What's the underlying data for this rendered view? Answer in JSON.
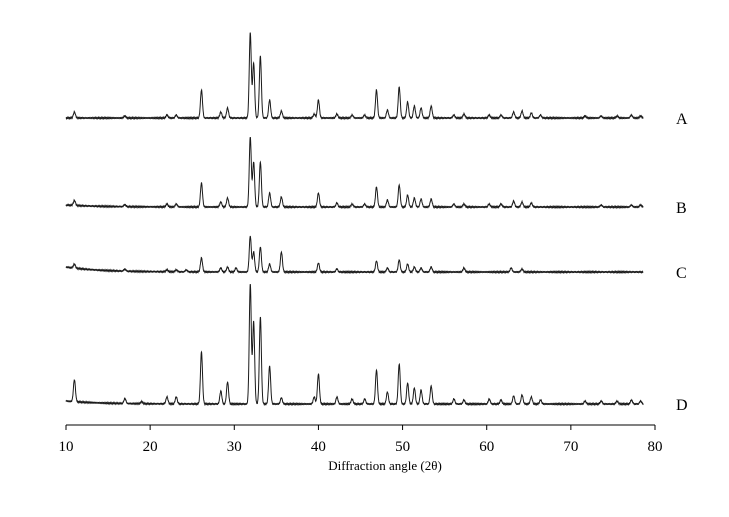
{
  "chart_data": {
    "type": "line",
    "title": "",
    "xlabel": "Diffraction angle (2θ)",
    "ylabel": "",
    "xlim": [
      10,
      80
    ],
    "xticks": [
      10,
      20,
      30,
      40,
      50,
      60,
      70,
      80
    ],
    "y_axis_shown": false,
    "grid": false,
    "legend": "labels at right end of each trace",
    "offset_stacked": true,
    "line_color": "#1a1a1a",
    "peak_width_deg": 0.12,
    "series": [
      {
        "name": "A",
        "baseline": 118,
        "baseline_tail": 0,
        "peaks": [
          [
            11.0,
            0.06
          ],
          [
            17.0,
            0.02
          ],
          [
            22.0,
            0.03
          ],
          [
            23.1,
            0.03
          ],
          [
            26.1,
            0.28
          ],
          [
            28.4,
            0.06
          ],
          [
            29.2,
            0.1
          ],
          [
            31.9,
            0.85
          ],
          [
            32.3,
            0.55
          ],
          [
            33.1,
            0.62
          ],
          [
            34.2,
            0.18
          ],
          [
            35.6,
            0.07
          ],
          [
            39.5,
            0.04
          ],
          [
            40.0,
            0.18
          ],
          [
            42.2,
            0.04
          ],
          [
            44.0,
            0.03
          ],
          [
            45.5,
            0.03
          ],
          [
            46.9,
            0.28
          ],
          [
            48.2,
            0.08
          ],
          [
            49.6,
            0.31
          ],
          [
            50.6,
            0.16
          ],
          [
            51.4,
            0.12
          ],
          [
            52.2,
            0.1
          ],
          [
            53.4,
            0.12
          ],
          [
            56.1,
            0.03
          ],
          [
            57.3,
            0.04
          ],
          [
            60.3,
            0.03
          ],
          [
            61.7,
            0.03
          ],
          [
            63.2,
            0.06
          ],
          [
            64.2,
            0.07
          ],
          [
            65.3,
            0.05
          ],
          [
            66.4,
            0.03
          ],
          [
            71.7,
            0.02
          ],
          [
            73.6,
            0.02
          ],
          [
            75.5,
            0.02
          ],
          [
            77.2,
            0.03
          ],
          [
            78.3,
            0.02
          ]
        ]
      },
      {
        "name": "B",
        "baseline": 207,
        "baseline_tail": 0.02,
        "peaks": [
          [
            11.0,
            0.05
          ],
          [
            17.0,
            0.02
          ],
          [
            22.0,
            0.03
          ],
          [
            23.1,
            0.03
          ],
          [
            26.1,
            0.24
          ],
          [
            28.4,
            0.05
          ],
          [
            29.2,
            0.09
          ],
          [
            31.9,
            0.7
          ],
          [
            32.3,
            0.45
          ],
          [
            33.1,
            0.45
          ],
          [
            34.2,
            0.14
          ],
          [
            35.6,
            0.1
          ],
          [
            40.0,
            0.14
          ],
          [
            42.2,
            0.04
          ],
          [
            44.0,
            0.03
          ],
          [
            45.5,
            0.03
          ],
          [
            46.9,
            0.2
          ],
          [
            48.2,
            0.07
          ],
          [
            49.6,
            0.22
          ],
          [
            50.6,
            0.12
          ],
          [
            51.4,
            0.09
          ],
          [
            52.2,
            0.08
          ],
          [
            53.4,
            0.08
          ],
          [
            56.1,
            0.03
          ],
          [
            57.3,
            0.03
          ],
          [
            60.3,
            0.03
          ],
          [
            61.7,
            0.03
          ],
          [
            63.2,
            0.06
          ],
          [
            64.2,
            0.05
          ],
          [
            65.3,
            0.04
          ],
          [
            73.6,
            0.02
          ],
          [
            77.2,
            0.02
          ],
          [
            78.3,
            0.02
          ]
        ]
      },
      {
        "name": "C",
        "baseline": 272,
        "baseline_tail": 0.05,
        "peaks": [
          [
            11.0,
            0.04
          ],
          [
            17.0,
            0.02
          ],
          [
            22.0,
            0.02
          ],
          [
            23.1,
            0.02
          ],
          [
            24.3,
            0.02
          ],
          [
            26.1,
            0.14
          ],
          [
            28.4,
            0.04
          ],
          [
            29.2,
            0.05
          ],
          [
            30.2,
            0.04
          ],
          [
            31.9,
            0.36
          ],
          [
            32.3,
            0.2
          ],
          [
            33.1,
            0.25
          ],
          [
            34.2,
            0.08
          ],
          [
            35.6,
            0.2
          ],
          [
            40.0,
            0.09
          ],
          [
            42.2,
            0.03
          ],
          [
            46.9,
            0.11
          ],
          [
            48.2,
            0.04
          ],
          [
            49.6,
            0.12
          ],
          [
            50.6,
            0.08
          ],
          [
            51.4,
            0.05
          ],
          [
            52.2,
            0.04
          ],
          [
            53.4,
            0.05
          ],
          [
            57.3,
            0.04
          ],
          [
            62.9,
            0.04
          ],
          [
            64.2,
            0.03
          ]
        ]
      },
      {
        "name": "D",
        "baseline": 404,
        "baseline_tail": 0.03,
        "peaks": [
          [
            11.0,
            0.22
          ],
          [
            17.0,
            0.05
          ],
          [
            19.0,
            0.02
          ],
          [
            22.0,
            0.07
          ],
          [
            23.1,
            0.07
          ],
          [
            26.1,
            0.52
          ],
          [
            28.4,
            0.13
          ],
          [
            29.2,
            0.22
          ],
          [
            31.9,
            1.2
          ],
          [
            32.3,
            0.82
          ],
          [
            33.1,
            0.87
          ],
          [
            34.2,
            0.38
          ],
          [
            35.6,
            0.06
          ],
          [
            39.5,
            0.07
          ],
          [
            40.0,
            0.3
          ],
          [
            42.2,
            0.07
          ],
          [
            44.0,
            0.05
          ],
          [
            45.5,
            0.05
          ],
          [
            46.9,
            0.34
          ],
          [
            48.2,
            0.12
          ],
          [
            49.6,
            0.4
          ],
          [
            50.6,
            0.21
          ],
          [
            51.4,
            0.16
          ],
          [
            52.2,
            0.14
          ],
          [
            53.4,
            0.18
          ],
          [
            56.1,
            0.05
          ],
          [
            57.3,
            0.04
          ],
          [
            60.3,
            0.05
          ],
          [
            61.7,
            0.04
          ],
          [
            63.2,
            0.08
          ],
          [
            64.2,
            0.09
          ],
          [
            65.3,
            0.07
          ],
          [
            66.4,
            0.04
          ],
          [
            71.7,
            0.03
          ],
          [
            73.6,
            0.03
          ],
          [
            75.5,
            0.03
          ],
          [
            77.2,
            0.04
          ],
          [
            78.3,
            0.03
          ]
        ]
      }
    ]
  }
}
